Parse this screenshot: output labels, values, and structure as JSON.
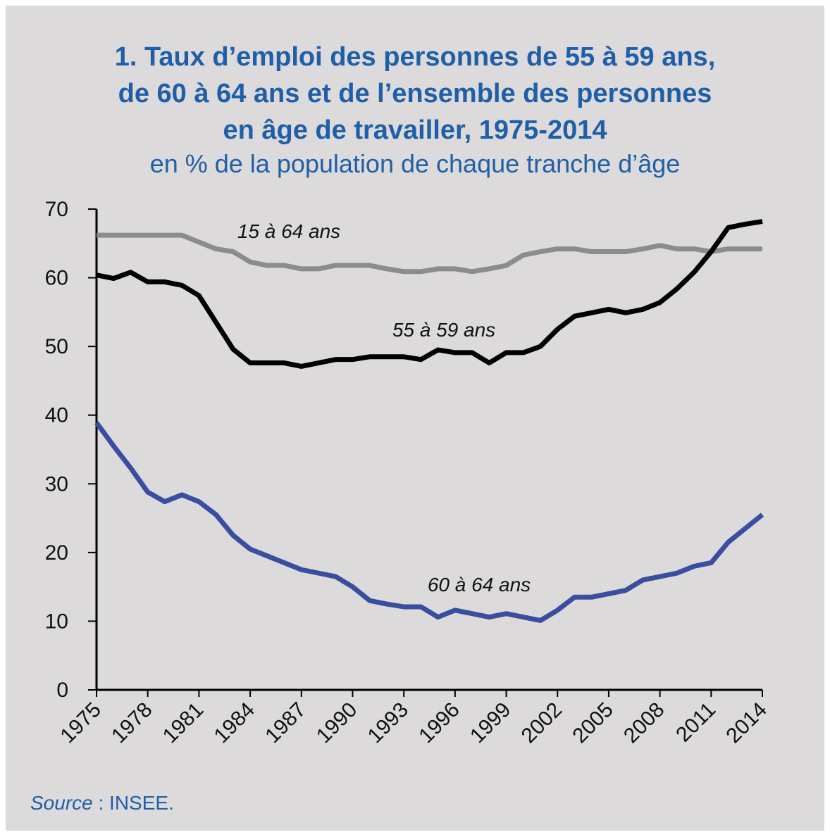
{
  "chart_data": {
    "type": "line",
    "title": [
      "1. Taux d’emploi des personnes de 55 à 59 ans,",
      "de 60 à 64 ans et de l’ensemble des personnes",
      "en âge de travailler, 1975-2014"
    ],
    "subtitle": "en % de la population de chaque tranche d’âge",
    "source_label": "Source",
    "source": " : INSEE.",
    "x": [
      1975,
      1976,
      1977,
      1978,
      1979,
      1980,
      1981,
      1982,
      1983,
      1984,
      1985,
      1986,
      1987,
      1988,
      1989,
      1990,
      1991,
      1992,
      1993,
      1994,
      1995,
      1996,
      1997,
      1998,
      1999,
      2000,
      2001,
      2002,
      2003,
      2004,
      2005,
      2006,
      2007,
      2008,
      2009,
      2010,
      2011,
      2012,
      2013,
      2014
    ],
    "xlim": [
      1975,
      2014
    ],
    "xticks": [
      1975,
      1978,
      1981,
      1984,
      1987,
      1990,
      1993,
      1996,
      1999,
      2002,
      2005,
      2008,
      2011,
      2014
    ],
    "ylim": [
      0,
      70
    ],
    "yticks": [
      0,
      10,
      20,
      30,
      40,
      50,
      60,
      70
    ],
    "grid": false,
    "series": [
      {
        "name": "15 à 64 ans",
        "color": "#8c8c8c",
        "values": [
          66.2,
          66.2,
          66.2,
          66.2,
          66.2,
          66.2,
          65.2,
          64.2,
          63.8,
          62.3,
          61.8,
          61.8,
          61.3,
          61.3,
          61.8,
          61.8,
          61.8,
          61.3,
          60.9,
          60.9,
          61.3,
          61.3,
          60.9,
          61.3,
          61.8,
          63.3,
          63.8,
          64.2,
          64.2,
          63.8,
          63.8,
          63.8,
          64.2,
          64.7,
          64.2,
          64.2,
          63.8,
          64.2,
          64.2,
          64.2
        ]
      },
      {
        "name": "55 à 59 ans",
        "color": "#000000",
        "values": [
          60.4,
          59.9,
          60.8,
          59.4,
          59.4,
          58.9,
          57.4,
          53.5,
          49.6,
          47.6,
          47.6,
          47.6,
          47.1,
          47.6,
          48.1,
          48.1,
          48.5,
          48.5,
          48.5,
          48.1,
          49.5,
          49.1,
          49.1,
          47.6,
          49.1,
          49.1,
          50.0,
          52.5,
          54.4,
          54.9,
          55.4,
          54.9,
          55.4,
          56.4,
          58.4,
          60.8,
          63.8,
          67.3,
          67.8,
          68.2
        ]
      },
      {
        "name": "60 à 64 ans",
        "color": "#3a4ea0",
        "values": [
          38.9,
          35.5,
          32.3,
          28.8,
          27.4,
          28.4,
          27.4,
          25.5,
          22.5,
          20.5,
          19.5,
          18.5,
          17.5,
          17.0,
          16.5,
          15.0,
          13.0,
          12.5,
          12.1,
          12.1,
          10.6,
          11.6,
          11.1,
          10.6,
          11.1,
          10.6,
          10.1,
          11.6,
          13.5,
          13.5,
          14.0,
          14.5,
          16.0,
          16.5,
          17.0,
          18.0,
          18.5,
          21.5,
          23.5,
          25.5
        ]
      }
    ]
  }
}
